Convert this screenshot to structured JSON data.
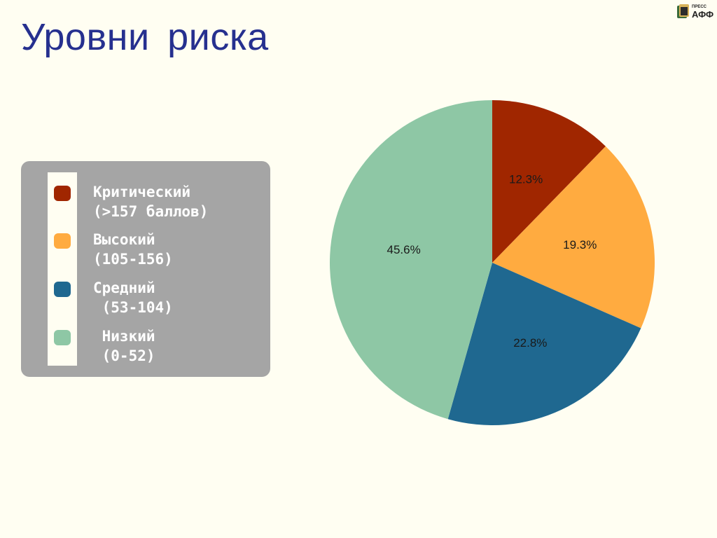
{
  "title": "Уровни риска",
  "logo_text": {
    "top": "ПРЕСС",
    "bottom": "АФФ"
  },
  "legend": {
    "items": [
      {
        "line1": "Критический",
        "line2": "(>157 баллов)",
        "color": "#a02600"
      },
      {
        "line1": "Высокий",
        "line2": "(105-156)",
        "color": "#ffab40"
      },
      {
        "line1": "Средний",
        "line2": " (53-104)",
        "color": "#1f6890"
      },
      {
        "line1": " Низкий",
        "line2": " (0-52)",
        "color": "#8ec7a5"
      }
    ]
  },
  "chart_data": {
    "type": "pie",
    "title": "Уровни риска",
    "categories": [
      "Критический (>157 баллов)",
      "Высокий (105-156)",
      "Средний (53-104)",
      "Низкий (0-52)"
    ],
    "values": [
      12.3,
      19.3,
      22.8,
      45.6
    ],
    "labels": [
      "12.3%",
      "19.3%",
      "22.8%",
      "45.6%"
    ],
    "colors": [
      "#a02600",
      "#ffab40",
      "#1f6890",
      "#8ec7a5"
    ],
    "start_angle_deg": 0,
    "direction": "clockwise",
    "legend": "left"
  }
}
